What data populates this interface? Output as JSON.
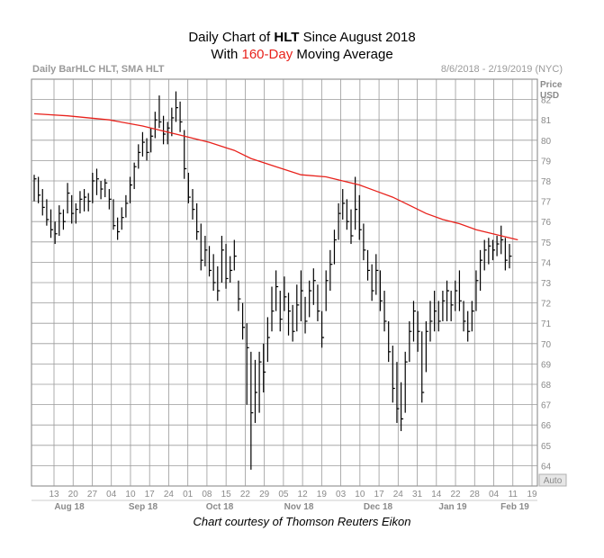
{
  "title": {
    "prefix": "Daily Chart of ",
    "ticker": "HLT",
    "suffix": " Since August 2018",
    "line2_prefix": "With ",
    "line2_highlight": "160-Day",
    "line2_suffix": " Moving Average"
  },
  "header": {
    "left": "Daily BarHLC HLT, SMA HLT",
    "right": "8/6/2018 - 2/19/2019 (NYC)"
  },
  "axis": {
    "unit_top": "Price",
    "unit_bottom": "USD",
    "scale_button": "Auto"
  },
  "credit": "Chart courtesy of Thomson Reuters Eikon",
  "colors": {
    "price_bars": "#000000",
    "sma": "#e8221c",
    "grid": "#9a9a9a",
    "axis_text": "#8a8a8a",
    "highlight": "#e8221c"
  },
  "chart_data": {
    "type": "line",
    "subtype": "ohlc-bar (high-low-close) with moving average overlay",
    "ylim": [
      63,
      83
    ],
    "y_ticks": [
      64,
      65,
      66,
      67,
      68,
      69,
      70,
      71,
      72,
      73,
      74,
      75,
      76,
      77,
      78,
      79,
      80,
      81,
      82
    ],
    "x_day_labels": [
      "13",
      "20",
      "27",
      "04",
      "10",
      "17",
      "24",
      "01",
      "08",
      "15",
      "22",
      "29",
      "05",
      "12",
      "19",
      "03",
      "10",
      "17",
      "24",
      "31",
      "14",
      "22",
      "28",
      "04",
      "11",
      "19"
    ],
    "x_month_labels": [
      "Aug 18",
      "Sep 18",
      "Oct 18",
      "Nov 18",
      "Dec 18",
      "Jan 19",
      "Feb 19"
    ],
    "price_bars": [
      {
        "h": 78.3,
        "l": 77.0,
        "c": 78.1
      },
      {
        "h": 78.2,
        "l": 76.9,
        "c": 77.3
      },
      {
        "h": 77.6,
        "l": 76.3,
        "c": 76.7
      },
      {
        "h": 77.1,
        "l": 75.8,
        "c": 76.1
      },
      {
        "h": 76.6,
        "l": 75.2,
        "c": 75.6
      },
      {
        "h": 76.0,
        "l": 74.9,
        "c": 75.4
      },
      {
        "h": 76.8,
        "l": 75.3,
        "c": 76.4
      },
      {
        "h": 76.6,
        "l": 75.6,
        "c": 76.0
      },
      {
        "h": 77.9,
        "l": 76.4,
        "c": 77.4
      },
      {
        "h": 77.3,
        "l": 75.9,
        "c": 76.4
      },
      {
        "h": 76.9,
        "l": 75.9,
        "c": 76.6
      },
      {
        "h": 77.5,
        "l": 76.4,
        "c": 77.1
      },
      {
        "h": 77.6,
        "l": 76.5,
        "c": 77.2
      },
      {
        "h": 77.4,
        "l": 76.5,
        "c": 77.0
      },
      {
        "h": 78.4,
        "l": 76.9,
        "c": 78.0
      },
      {
        "h": 78.6,
        "l": 77.3,
        "c": 78.1
      },
      {
        "h": 78.0,
        "l": 77.1,
        "c": 77.6
      },
      {
        "h": 78.1,
        "l": 77.2,
        "c": 77.9
      },
      {
        "h": 77.6,
        "l": 76.6,
        "c": 77.1
      },
      {
        "h": 77.1,
        "l": 75.6,
        "c": 75.8
      },
      {
        "h": 76.2,
        "l": 75.1,
        "c": 75.5
      },
      {
        "h": 76.7,
        "l": 75.6,
        "c": 76.2
      },
      {
        "h": 77.3,
        "l": 76.2,
        "c": 76.9
      },
      {
        "h": 78.2,
        "l": 76.9,
        "c": 77.8
      },
      {
        "h": 78.9,
        "l": 77.6,
        "c": 78.7
      },
      {
        "h": 79.8,
        "l": 78.6,
        "c": 79.4
      },
      {
        "h": 80.4,
        "l": 79.2,
        "c": 79.9
      },
      {
        "h": 80.1,
        "l": 79.0,
        "c": 79.4
      },
      {
        "h": 80.6,
        "l": 79.4,
        "c": 80.2
      },
      {
        "h": 81.4,
        "l": 80.1,
        "c": 81.0
      },
      {
        "h": 82.2,
        "l": 80.6,
        "c": 80.9
      },
      {
        "h": 81.2,
        "l": 79.8,
        "c": 80.3
      },
      {
        "h": 80.9,
        "l": 79.8,
        "c": 80.6
      },
      {
        "h": 81.6,
        "l": 80.2,
        "c": 81.1
      },
      {
        "h": 82.4,
        "l": 80.9,
        "c": 81.6
      },
      {
        "h": 81.9,
        "l": 80.4,
        "c": 80.9
      },
      {
        "h": 80.5,
        "l": 78.1,
        "c": 78.6
      },
      {
        "h": 78.4,
        "l": 76.9,
        "c": 77.2
      },
      {
        "h": 77.6,
        "l": 76.1,
        "c": 76.6
      },
      {
        "h": 76.9,
        "l": 75.1,
        "c": 75.5
      },
      {
        "h": 75.9,
        "l": 73.6,
        "c": 74.1
      },
      {
        "h": 75.3,
        "l": 73.8,
        "c": 74.6
      },
      {
        "h": 74.8,
        "l": 73.3,
        "c": 73.6
      },
      {
        "h": 74.4,
        "l": 72.6,
        "c": 73.0
      },
      {
        "h": 73.8,
        "l": 72.1,
        "c": 72.6
      },
      {
        "h": 75.3,
        "l": 73.0,
        "c": 74.6
      },
      {
        "h": 74.9,
        "l": 72.7,
        "c": 73.2
      },
      {
        "h": 74.3,
        "l": 73.0,
        "c": 73.6
      },
      {
        "h": 75.1,
        "l": 73.6,
        "c": 74.3
      },
      {
        "h": 73.1,
        "l": 71.6,
        "c": 72.2
      },
      {
        "h": 72.0,
        "l": 70.2,
        "c": 70.8
      },
      {
        "h": 71.0,
        "l": 67.0,
        "c": 69.8
      },
      {
        "h": 69.6,
        "l": 63.8,
        "c": 66.6
      },
      {
        "h": 69.2,
        "l": 66.1,
        "c": 67.6
      },
      {
        "h": 69.6,
        "l": 66.6,
        "c": 69.1
      },
      {
        "h": 70.0,
        "l": 67.6,
        "c": 68.6
      },
      {
        "h": 71.3,
        "l": 69.1,
        "c": 70.3
      },
      {
        "h": 72.8,
        "l": 70.6,
        "c": 71.6
      },
      {
        "h": 73.6,
        "l": 71.6,
        "c": 72.8
      },
      {
        "h": 72.6,
        "l": 70.6,
        "c": 71.2
      },
      {
        "h": 73.3,
        "l": 71.6,
        "c": 72.3
      },
      {
        "h": 72.5,
        "l": 70.4,
        "c": 71.6
      },
      {
        "h": 71.9,
        "l": 70.1,
        "c": 70.6
      },
      {
        "h": 72.9,
        "l": 70.6,
        "c": 71.9
      },
      {
        "h": 73.6,
        "l": 71.1,
        "c": 72.6
      },
      {
        "h": 72.3,
        "l": 70.5,
        "c": 71.1
      },
      {
        "h": 73.1,
        "l": 71.3,
        "c": 72.6
      },
      {
        "h": 73.7,
        "l": 71.9,
        "c": 73.1
      },
      {
        "h": 72.9,
        "l": 71.1,
        "c": 71.6
      },
      {
        "h": 71.6,
        "l": 69.8,
        "c": 70.3
      },
      {
        "h": 73.6,
        "l": 71.6,
        "c": 73.1
      },
      {
        "h": 74.6,
        "l": 72.6,
        "c": 73.9
      },
      {
        "h": 75.6,
        "l": 73.9,
        "c": 75.1
      },
      {
        "h": 76.9,
        "l": 75.1,
        "c": 76.4
      },
      {
        "h": 77.6,
        "l": 76.1,
        "c": 76.9
      },
      {
        "h": 77.1,
        "l": 75.6,
        "c": 76.0
      },
      {
        "h": 76.6,
        "l": 74.9,
        "c": 75.3
      },
      {
        "h": 78.2,
        "l": 75.6,
        "c": 76.6
      },
      {
        "h": 77.3,
        "l": 75.1,
        "c": 75.6
      },
      {
        "h": 75.9,
        "l": 74.1,
        "c": 74.6
      },
      {
        "h": 74.6,
        "l": 73.1,
        "c": 73.6
      },
      {
        "h": 73.9,
        "l": 72.1,
        "c": 72.6
      },
      {
        "h": 74.4,
        "l": 72.4,
        "c": 73.6
      },
      {
        "h": 73.6,
        "l": 71.6,
        "c": 72.1
      },
      {
        "h": 72.6,
        "l": 70.6,
        "c": 71.1
      },
      {
        "h": 71.1,
        "l": 69.1,
        "c": 69.6
      },
      {
        "h": 69.9,
        "l": 67.1,
        "c": 67.8
      },
      {
        "h": 69.1,
        "l": 66.1,
        "c": 66.8
      },
      {
        "h": 68.1,
        "l": 65.7,
        "c": 66.3
      },
      {
        "h": 69.6,
        "l": 66.6,
        "c": 69.1
      },
      {
        "h": 71.1,
        "l": 69.1,
        "c": 70.6
      },
      {
        "h": 72.1,
        "l": 70.1,
        "c": 71.6
      },
      {
        "h": 71.6,
        "l": 69.6,
        "c": 70.6
      },
      {
        "h": 70.6,
        "l": 67.1,
        "c": 67.6
      },
      {
        "h": 71.1,
        "l": 68.6,
        "c": 70.6
      },
      {
        "h": 72.1,
        "l": 70.1,
        "c": 71.1
      },
      {
        "h": 72.6,
        "l": 70.6,
        "c": 71.6
      },
      {
        "h": 72.1,
        "l": 70.6,
        "c": 71.1
      },
      {
        "h": 72.6,
        "l": 71.1,
        "c": 72.1
      },
      {
        "h": 73.1,
        "l": 71.1,
        "c": 72.6
      },
      {
        "h": 72.6,
        "l": 71.1,
        "c": 71.9
      },
      {
        "h": 73.1,
        "l": 71.6,
        "c": 72.6
      },
      {
        "h": 73.6,
        "l": 71.6,
        "c": 72.1
      },
      {
        "h": 72.1,
        "l": 70.6,
        "c": 71.1
      },
      {
        "h": 71.6,
        "l": 70.1,
        "c": 70.6
      },
      {
        "h": 72.1,
        "l": 70.6,
        "c": 71.6
      },
      {
        "h": 73.6,
        "l": 71.6,
        "c": 73.1
      },
      {
        "h": 74.6,
        "l": 72.6,
        "c": 74.1
      },
      {
        "h": 75.1,
        "l": 73.6,
        "c": 74.6
      },
      {
        "h": 75.2,
        "l": 73.9,
        "c": 74.8
      },
      {
        "h": 75.1,
        "l": 74.1,
        "c": 74.6
      },
      {
        "h": 75.3,
        "l": 74.3,
        "c": 74.9
      },
      {
        "h": 75.8,
        "l": 74.4,
        "c": 75.1
      },
      {
        "h": 75.2,
        "l": 73.6,
        "c": 74.1
      },
      {
        "h": 74.9,
        "l": 73.7,
        "c": 74.3
      }
    ],
    "sma_160": [
      [
        0,
        81.3
      ],
      [
        8,
        81.2
      ],
      [
        18,
        81.0
      ],
      [
        26,
        80.7
      ],
      [
        32,
        80.4
      ],
      [
        36,
        80.2
      ],
      [
        42,
        79.9
      ],
      [
        48,
        79.5
      ],
      [
        52,
        79.1
      ],
      [
        58,
        78.7
      ],
      [
        64,
        78.3
      ],
      [
        70,
        78.2
      ],
      [
        74,
        78.0
      ],
      [
        78,
        77.8
      ],
      [
        82,
        77.5
      ],
      [
        86,
        77.2
      ],
      [
        90,
        76.8
      ],
      [
        94,
        76.4
      ],
      [
        98,
        76.1
      ],
      [
        102,
        75.9
      ],
      [
        106,
        75.6
      ],
      [
        110,
        75.4
      ],
      [
        114,
        75.2
      ],
      [
        116,
        75.1
      ]
    ]
  }
}
